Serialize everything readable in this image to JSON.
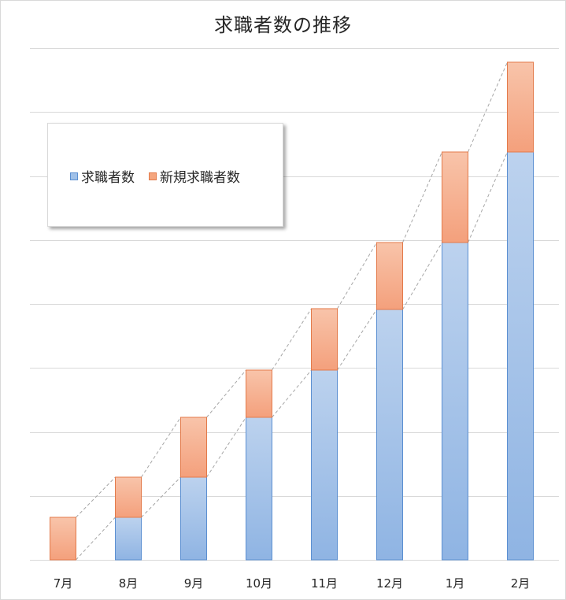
{
  "colors": {
    "series1_fill_top": "#bcd2ee",
    "series1_fill_bottom": "#8fb4e3",
    "series1_stroke": "#5b8fd1",
    "series2_fill_top": "#f8c4aa",
    "series2_fill_bottom": "#f4a07c",
    "series2_stroke": "#e37a4a",
    "gridline": "#d9d9d9",
    "connector": "#a6a6a6"
  },
  "chart_data": {
    "type": "bar",
    "stacked": true,
    "title": "求職者数の推移",
    "xlabel": "",
    "ylabel": "",
    "categories": [
      "7月",
      "8月",
      "9月",
      "10月",
      "11月",
      "12月",
      "1月",
      "2月"
    ],
    "series": [
      {
        "name": "求職者数",
        "values": [
          0,
          54,
          105,
          181,
          241,
          318,
          403,
          518
        ]
      },
      {
        "name": "新規求職者数",
        "values": [
          54,
          51,
          76,
          60,
          78,
          85,
          115,
          114
        ]
      }
    ],
    "ylim": [
      0,
      650
    ],
    "gridlines": [
      0,
      81.25,
      162.5,
      243.75,
      325,
      406.25,
      487.5,
      568.75,
      650
    ],
    "grid": true,
    "show_y_tick_labels": false,
    "legend": {
      "position": "top-left",
      "entries": [
        "求職者数",
        "新規求職者数"
      ]
    },
    "series_lines": true
  }
}
